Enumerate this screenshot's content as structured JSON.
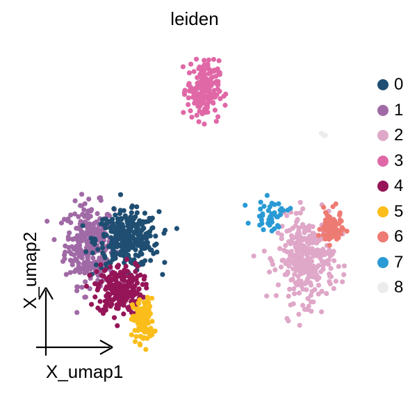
{
  "title": "leiden",
  "chart_data": {
    "type": "scatter",
    "title": "leiden",
    "xlabel": "X_umap1",
    "ylabel": "X_umap2",
    "grid": false,
    "legend_position": "right",
    "series": [
      {
        "name": "0",
        "color": "#1f4e72",
        "approx_center": [
          3.2,
          4.5
        ],
        "approx_spread": [
          1.8,
          1.5
        ]
      },
      {
        "name": "1",
        "color": "#a06aa6",
        "approx_center": [
          0.8,
          4.2
        ],
        "approx_spread": [
          1.4,
          2.2
        ]
      },
      {
        "name": "2",
        "color": "#dfa7c8",
        "approx_center": [
          14.5,
          3.3
        ],
        "approx_spread": [
          1.6,
          2.3
        ]
      },
      {
        "name": "3",
        "color": "#e068a7",
        "approx_center": [
          8.0,
          13.5
        ],
        "approx_spread": [
          0.9,
          1.6
        ]
      },
      {
        "name": "4",
        "color": "#951558",
        "approx_center": [
          2.7,
          1.5
        ],
        "approx_spread": [
          1.3,
          1.4
        ]
      },
      {
        "name": "5",
        "color": "#fbbd1a",
        "approx_center": [
          4.2,
          -0.4
        ],
        "approx_spread": [
          0.6,
          1.2
        ]
      },
      {
        "name": "6",
        "color": "#ee7b73",
        "approx_center": [
          16.1,
          5.2
        ],
        "approx_spread": [
          0.6,
          0.9
        ]
      },
      {
        "name": "7",
        "color": "#2a9ad4",
        "approx_center": [
          12.3,
          6.0
        ],
        "approx_spread": [
          1.0,
          0.8
        ]
      },
      {
        "name": "8",
        "color": "#ececec",
        "approx_center": [
          15.6,
          10.8
        ],
        "approx_spread": [
          0.1,
          0.1
        ]
      }
    ]
  }
}
